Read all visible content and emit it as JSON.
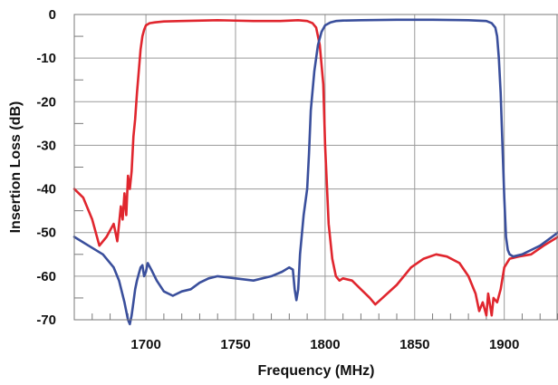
{
  "chart_data": {
    "type": "line",
    "title": "",
    "xlabel": "Frequency (MHz)",
    "ylabel": "Insertion Loss (dB)",
    "xlim": [
      1660,
      1930
    ],
    "ylim": [
      -70,
      0
    ],
    "x_ticks": [
      1700,
      1750,
      1800,
      1850,
      1900
    ],
    "y_ticks": [
      0,
      -10,
      -20,
      -30,
      -40,
      -50,
      -60,
      -70
    ],
    "grid": true,
    "legend": "none",
    "series": [
      {
        "color": "#e0262e",
        "x": [
          1660,
          1665,
          1670,
          1674,
          1678,
          1682,
          1684,
          1686,
          1687,
          1688,
          1689,
          1690,
          1691,
          1692,
          1693,
          1694,
          1695,
          1696,
          1697,
          1698,
          1699,
          1700,
          1702,
          1705,
          1710,
          1720,
          1740,
          1760,
          1775,
          1785,
          1790,
          1793,
          1795,
          1797,
          1799,
          1800,
          1802,
          1804,
          1806,
          1808,
          1810,
          1815,
          1820,
          1825,
          1828,
          1832,
          1840,
          1848,
          1855,
          1862,
          1868,
          1875,
          1880,
          1884,
          1886,
          1888,
          1890,
          1891,
          1893,
          1894,
          1896,
          1898,
          1900,
          1903,
          1908,
          1915,
          1922,
          1930
        ],
        "y": [
          -40,
          -42,
          -47,
          -53,
          -51,
          -48,
          -52,
          -44,
          -47,
          -41,
          -46,
          -37,
          -40,
          -36,
          -28,
          -24,
          -18,
          -13,
          -8,
          -5,
          -3.5,
          -2.5,
          -2,
          -1.8,
          -1.6,
          -1.5,
          -1.3,
          -1.5,
          -1.5,
          -1.3,
          -1.5,
          -2,
          -3,
          -7,
          -16,
          -30,
          -48,
          -56,
          -60,
          -61,
          -60.5,
          -61,
          -63,
          -65,
          -66.5,
          -65,
          -62,
          -58,
          -56,
          -55,
          -55.5,
          -57,
          -60,
          -64,
          -68,
          -66,
          -69,
          -64,
          -69,
          -65,
          -66,
          -63,
          -58,
          -56,
          -55.5,
          -55,
          -53,
          -51
        ]
      },
      {
        "color": "#3a4f9c",
        "x": [
          1660,
          1668,
          1676,
          1682,
          1685,
          1688,
          1690,
          1691,
          1692,
          1693,
          1694,
          1695,
          1696,
          1697,
          1698,
          1699,
          1700,
          1701,
          1703,
          1706,
          1710,
          1715,
          1720,
          1725,
          1730,
          1735,
          1740,
          1750,
          1760,
          1770,
          1776,
          1780,
          1782,
          1783,
          1784,
          1785,
          1786,
          1788,
          1790,
          1791,
          1792,
          1794,
          1796,
          1798,
          1800,
          1803,
          1806,
          1810,
          1820,
          1840,
          1860,
          1880,
          1890,
          1893,
          1895,
          1896,
          1897,
          1898,
          1899,
          1900,
          1901,
          1902,
          1903,
          1905,
          1910,
          1915,
          1920,
          1925,
          1930
        ],
        "y": [
          -51,
          -53,
          -55,
          -58,
          -61,
          -66,
          -70,
          -71,
          -69,
          -66,
          -63,
          -61,
          -59.5,
          -58,
          -57.5,
          -60,
          -59,
          -57,
          -58.5,
          -61,
          -63.5,
          -64.5,
          -63.5,
          -63,
          -61.5,
          -60.5,
          -60,
          -60.5,
          -61,
          -60,
          -59,
          -58,
          -58.5,
          -63,
          -65.5,
          -63,
          -55,
          -46,
          -40,
          -32,
          -22,
          -13,
          -7,
          -4,
          -2.5,
          -1.8,
          -1.5,
          -1.4,
          -1.3,
          -1.2,
          -1.2,
          -1.3,
          -1.5,
          -2,
          -3,
          -5,
          -10,
          -18,
          -30,
          -42,
          -51,
          -54,
          -55,
          -55.5,
          -55,
          -54,
          -53,
          -51.5,
          -50
        ]
      }
    ]
  }
}
